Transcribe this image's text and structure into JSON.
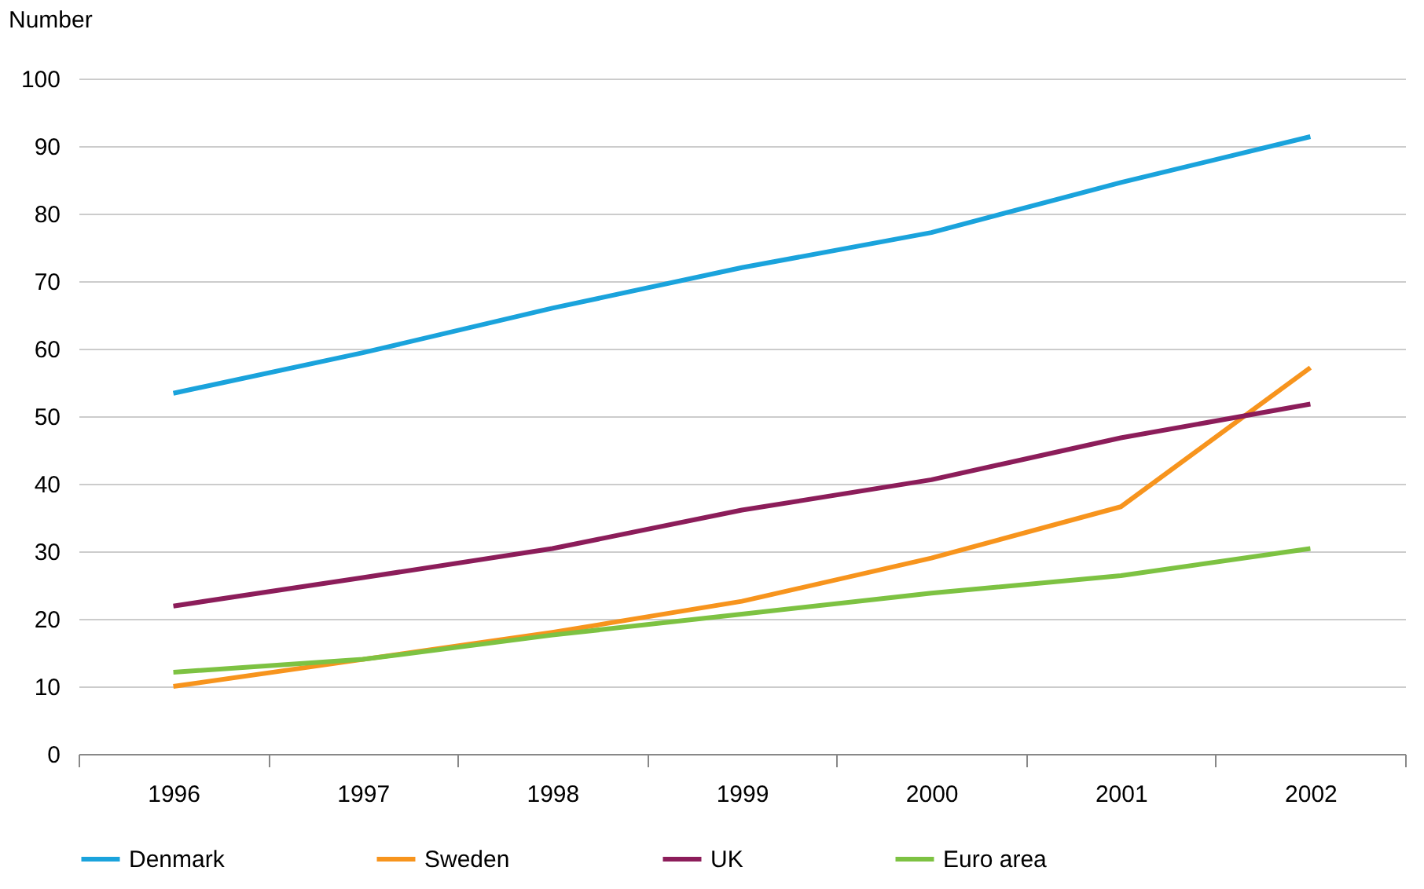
{
  "chart_data": {
    "type": "line",
    "ylabel": "Number",
    "categories": [
      "1996",
      "1997",
      "1998",
      "1999",
      "2000",
      "2001",
      "2002"
    ],
    "series": [
      {
        "name": "Denmark",
        "color": "#1aa3dc",
        "values": [
          53.4,
          59.4,
          66,
          72,
          77.2,
          84.6,
          91.4
        ]
      },
      {
        "name": "Sweden",
        "color": "#f7941d",
        "values": [
          10,
          14,
          18,
          22.6,
          29,
          36.6,
          57.2
        ]
      },
      {
        "name": "UK",
        "color": "#8c1d5a",
        "values": [
          21.9,
          26.1,
          30.4,
          36.1,
          40.6,
          46.8,
          51.8
        ]
      },
      {
        "name": "Euro area",
        "color": "#7dc242",
        "values": [
          12.1,
          14,
          17.6,
          20.7,
          23.8,
          26.4,
          30.4
        ]
      }
    ],
    "ylim": [
      0,
      100
    ],
    "yticks": [
      0,
      10,
      20,
      30,
      40,
      50,
      60,
      70,
      80,
      90,
      100
    ],
    "grid": "y",
    "legend": "bottom",
    "marker": "none",
    "line_style": "solid"
  }
}
